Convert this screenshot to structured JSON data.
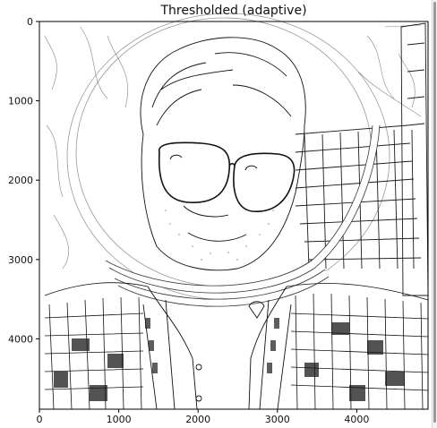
{
  "figure": {
    "title": "Thresholded (adaptive)"
  },
  "axes": {
    "x_ticks": [
      "0",
      "1000",
      "2000",
      "3000",
      "4000"
    ],
    "y_ticks": [
      "0",
      "1000",
      "2000",
      "3000",
      "4000"
    ]
  },
  "image": {
    "description_colors": {
      "background": "#ffffff",
      "ink": "#1a1a1a"
    }
  }
}
